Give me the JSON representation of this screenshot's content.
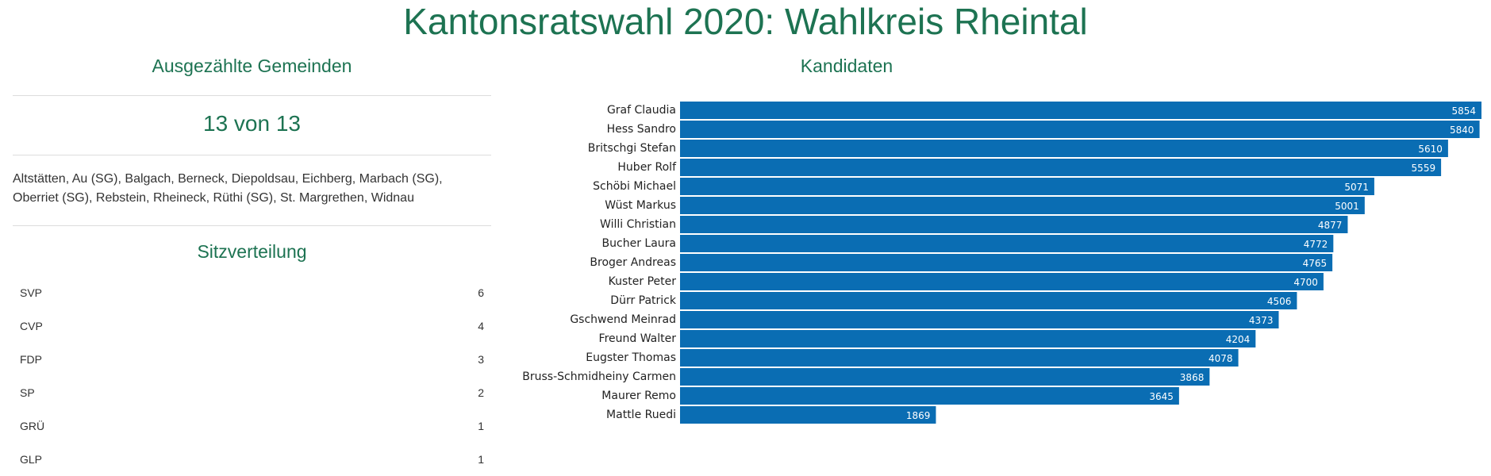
{
  "title": "Kantonsratswahl 2020: Wahlkreis Rheintal",
  "gemeinden": {
    "heading": "Ausgezählte Gemeinden",
    "count_text": "13 von 13",
    "list_text": "Altstätten, Au (SG), Balgach, Berneck, Diepoldsau, Eichberg, Marbach (SG), Oberriet (SG), Rebstein, Rheineck, Rüthi (SG), St. Margrethen, Widnau"
  },
  "sitzverteilung": {
    "heading": "Sitzverteilung",
    "rows": [
      {
        "party": "SVP",
        "seats": "6"
      },
      {
        "party": "CVP",
        "seats": "4"
      },
      {
        "party": "FDP",
        "seats": "3"
      },
      {
        "party": "SP",
        "seats": "2"
      },
      {
        "party": "GRÜ",
        "seats": "1"
      },
      {
        "party": "GLP",
        "seats": "1"
      }
    ]
  },
  "kandidaten": {
    "heading": "Kandidaten"
  },
  "colors": {
    "accent": "#1d7352",
    "bar": "#0a6db3"
  },
  "chart_data": {
    "type": "bar",
    "orientation": "horizontal",
    "categories": [
      "Graf Claudia",
      "Hess Sandro",
      "Britschgi Stefan",
      "Huber Rolf",
      "Schöbi Michael",
      "Wüst Markus",
      "Willi Christian",
      "Bucher Laura",
      "Broger Andreas",
      "Kuster Peter",
      "Dürr Patrick",
      "Gschwend Meinrad",
      "Freund Walter",
      "Eugster Thomas",
      "Bruss-Schmidheiny Carmen",
      "Maurer Remo",
      "Mattle Ruedi"
    ],
    "values": [
      5854,
      5840,
      5610,
      5559,
      5071,
      5001,
      4877,
      4772,
      4765,
      4700,
      4506,
      4373,
      4204,
      4078,
      3868,
      3645,
      1869
    ],
    "xlim": [
      0,
      5854
    ],
    "data_labels": true,
    "grid": false
  }
}
